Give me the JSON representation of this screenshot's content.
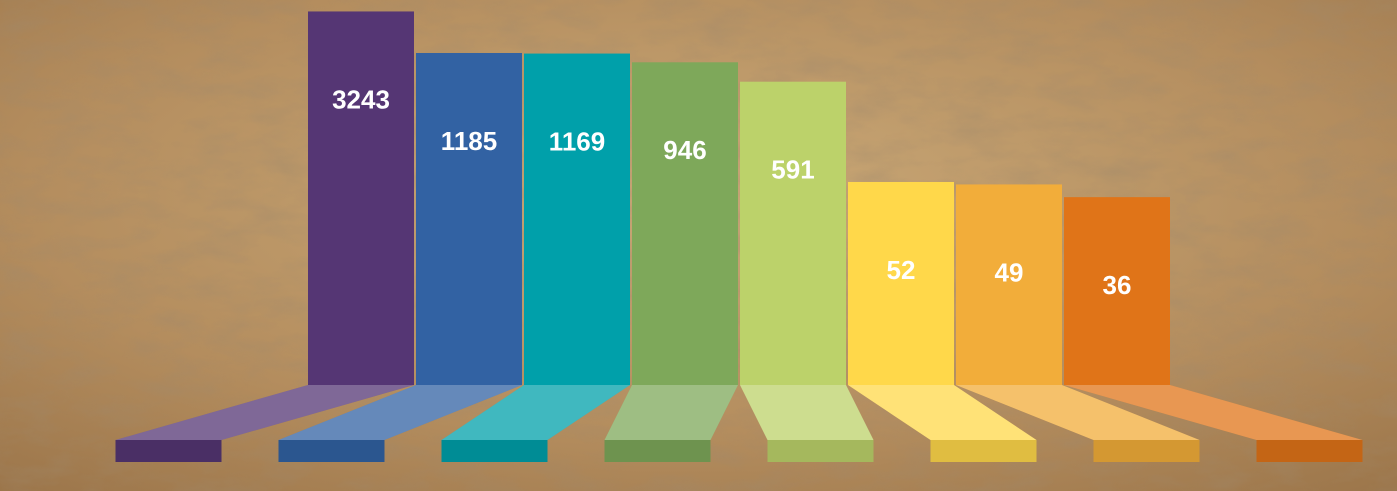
{
  "chart_data": {
    "type": "bar",
    "log_scale": true,
    "values": [
      3243,
      1185,
      1169,
      946,
      591,
      52,
      49,
      36
    ],
    "colors": [
      "#553674",
      "#3262a3",
      "#00a0aa",
      "#7ea85a",
      "#bcd26a",
      "#ffd84a",
      "#f2ad3a",
      "#e07418"
    ]
  }
}
